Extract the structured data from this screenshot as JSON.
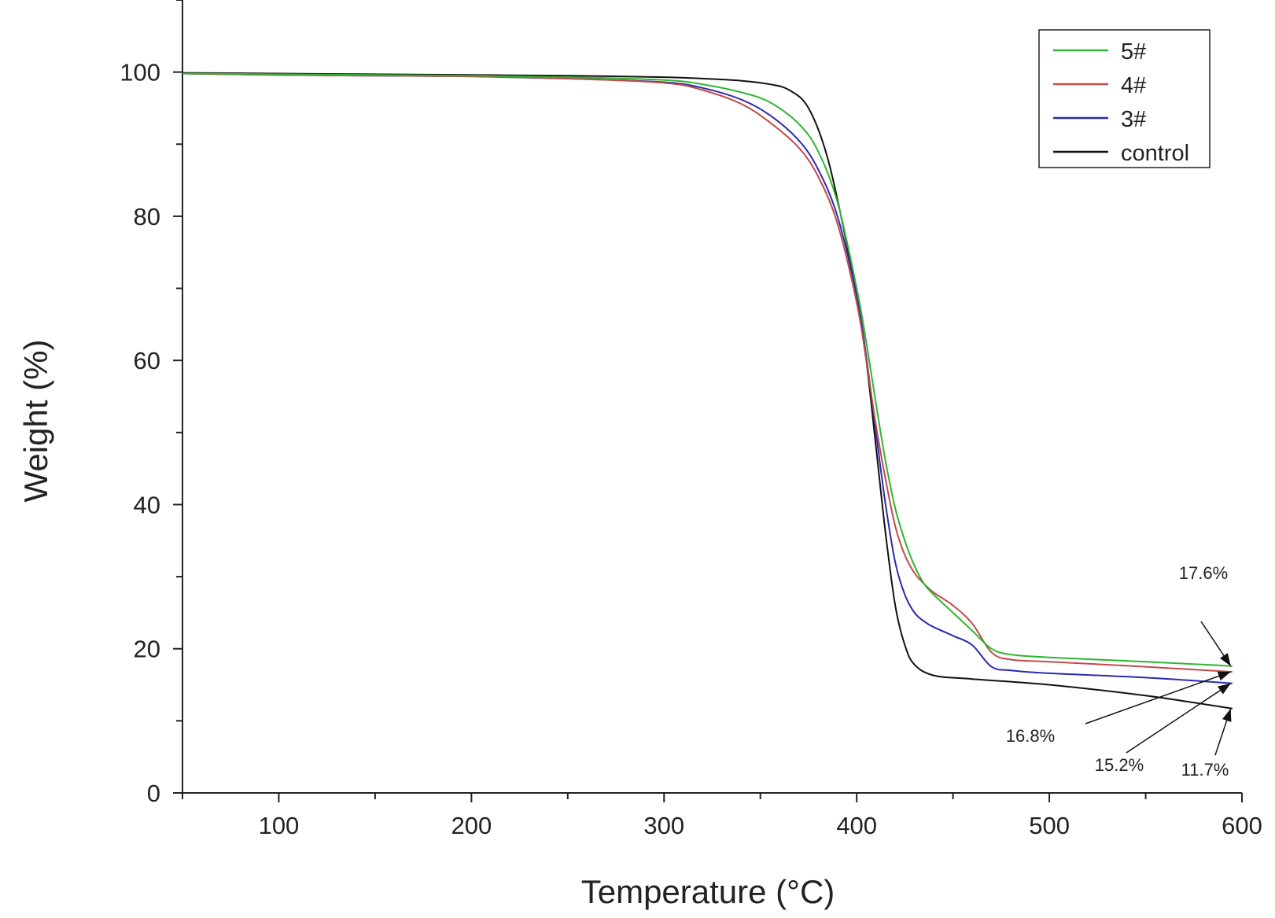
{
  "chart_data": {
    "type": "line",
    "title": "",
    "xlabel": "Temperature (°C)",
    "ylabel": "Weight (%)",
    "xlim": [
      50,
      600
    ],
    "ylim": [
      0,
      110
    ],
    "xticks": [
      100,
      200,
      300,
      400,
      500,
      600
    ],
    "xtick_labels": [
      "100",
      "200",
      "300",
      "400",
      "500",
      "600"
    ],
    "yticks": [
      0,
      20,
      40,
      60,
      80,
      100
    ],
    "ytick_labels": [
      "0",
      "20",
      "40",
      "60",
      "80",
      "100"
    ],
    "grid": false,
    "legend_position": "top-right",
    "series": [
      {
        "name": "5#",
        "color": "#2fb52f",
        "points": [
          [
            50,
            99.8
          ],
          [
            100,
            99.7
          ],
          [
            150,
            99.6
          ],
          [
            200,
            99.5
          ],
          [
            250,
            99.3
          ],
          [
            300,
            98.9
          ],
          [
            320,
            98.3
          ],
          [
            340,
            97.2
          ],
          [
            355,
            95.8
          ],
          [
            370,
            92.8
          ],
          [
            380,
            89.0
          ],
          [
            390,
            82.0
          ],
          [
            400,
            70.0
          ],
          [
            405,
            62.5
          ],
          [
            410,
            54.0
          ],
          [
            415,
            46.0
          ],
          [
            420,
            39.5
          ],
          [
            425,
            35.0
          ],
          [
            430,
            31.5
          ],
          [
            435,
            29.0
          ],
          [
            440,
            27.5
          ],
          [
            450,
            25.0
          ],
          [
            460,
            22.5
          ],
          [
            470,
            20.0
          ],
          [
            480,
            19.2
          ],
          [
            500,
            18.8
          ],
          [
            550,
            18.2
          ],
          [
            595,
            17.6
          ]
        ]
      },
      {
        "name": "4#",
        "color": "#c24a4a",
        "points": [
          [
            50,
            99.8
          ],
          [
            100,
            99.6
          ],
          [
            150,
            99.5
          ],
          [
            200,
            99.4
          ],
          [
            250,
            99.1
          ],
          [
            300,
            98.5
          ],
          [
            320,
            97.5
          ],
          [
            340,
            95.6
          ],
          [
            355,
            93.0
          ],
          [
            370,
            89.5
          ],
          [
            380,
            85.5
          ],
          [
            390,
            79.0
          ],
          [
            400,
            68.0
          ],
          [
            405,
            60.0
          ],
          [
            410,
            51.0
          ],
          [
            415,
            43.5
          ],
          [
            420,
            37.0
          ],
          [
            425,
            33.0
          ],
          [
            430,
            30.5
          ],
          [
            435,
            29.0
          ],
          [
            440,
            27.8
          ],
          [
            450,
            26.0
          ],
          [
            460,
            23.5
          ],
          [
            470,
            19.5
          ],
          [
            480,
            18.5
          ],
          [
            500,
            18.2
          ],
          [
            550,
            17.5
          ],
          [
            595,
            16.8
          ]
        ]
      },
      {
        "name": "3#",
        "color": "#2a2ab0",
        "points": [
          [
            50,
            99.8
          ],
          [
            100,
            99.6
          ],
          [
            150,
            99.5
          ],
          [
            200,
            99.4
          ],
          [
            250,
            99.1
          ],
          [
            300,
            98.6
          ],
          [
            320,
            97.8
          ],
          [
            340,
            96.2
          ],
          [
            355,
            94.0
          ],
          [
            370,
            90.5
          ],
          [
            380,
            86.5
          ],
          [
            390,
            80.0
          ],
          [
            400,
            69.0
          ],
          [
            405,
            60.5
          ],
          [
            410,
            50.0
          ],
          [
            415,
            40.0
          ],
          [
            420,
            32.0
          ],
          [
            425,
            27.5
          ],
          [
            430,
            25.0
          ],
          [
            435,
            23.8
          ],
          [
            440,
            23.0
          ],
          [
            450,
            21.8
          ],
          [
            460,
            20.5
          ],
          [
            470,
            17.5
          ],
          [
            480,
            17.0
          ],
          [
            500,
            16.6
          ],
          [
            550,
            16.0
          ],
          [
            595,
            15.2
          ]
        ]
      },
      {
        "name": "control",
        "color": "#111111",
        "points": [
          [
            50,
            99.9
          ],
          [
            100,
            99.8
          ],
          [
            150,
            99.7
          ],
          [
            200,
            99.6
          ],
          [
            250,
            99.5
          ],
          [
            300,
            99.3
          ],
          [
            320,
            99.1
          ],
          [
            340,
            98.8
          ],
          [
            355,
            98.3
          ],
          [
            365,
            97.5
          ],
          [
            375,
            95.0
          ],
          [
            385,
            88.0
          ],
          [
            395,
            76.0
          ],
          [
            400,
            69.0
          ],
          [
            405,
            60.0
          ],
          [
            410,
            48.0
          ],
          [
            415,
            36.0
          ],
          [
            420,
            26.0
          ],
          [
            425,
            20.5
          ],
          [
            430,
            17.8
          ],
          [
            440,
            16.3
          ],
          [
            460,
            15.8
          ],
          [
            500,
            15.0
          ],
          [
            550,
            13.5
          ],
          [
            595,
            11.7
          ]
        ]
      }
    ],
    "annotations": [
      {
        "text": "17.6%",
        "point": [
          595,
          17.6
        ]
      },
      {
        "text": "16.8%",
        "point": [
          595,
          16.8
        ]
      },
      {
        "text": "15.2%",
        "point": [
          595,
          15.2
        ]
      },
      {
        "text": "11.7%",
        "point": [
          595,
          11.7
        ]
      }
    ]
  }
}
